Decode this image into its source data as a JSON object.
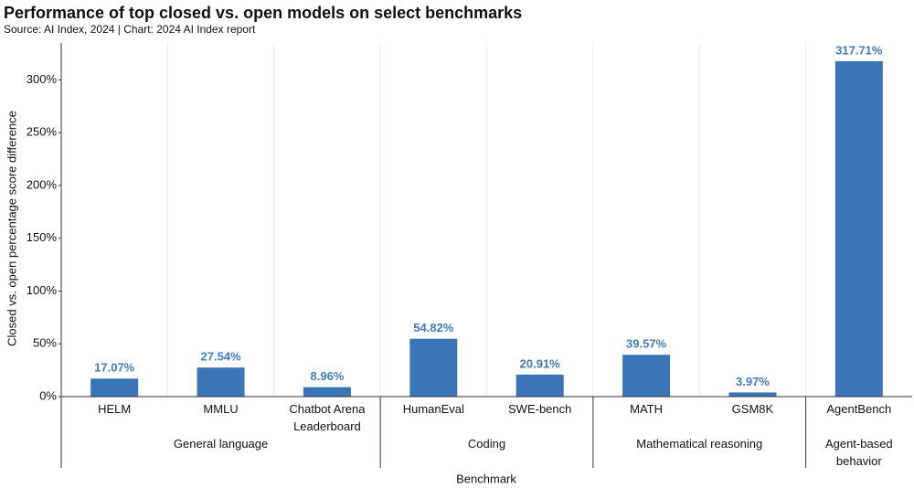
{
  "chart_data": {
    "type": "bar",
    "title": "Performance of top closed vs. open models on select benchmarks",
    "subtitle": "Source: AI Index, 2024 | Chart: 2024 AI Index report",
    "y_label": "Closed vs. open percentage score difference",
    "x_label": "Benchmark",
    "categories": [
      "HELM",
      "MMLU",
      "Chatbot Arena Leaderboard",
      "HumanEval",
      "SWE-bench",
      "MATH",
      "GSM8K",
      "AgentBench"
    ],
    "values": [
      17.07,
      27.54,
      8.96,
      54.82,
      20.91,
      39.57,
      3.97,
      317.71
    ],
    "value_labels": [
      "17.07%",
      "27.54%",
      "8.96%",
      "54.82%",
      "20.91%",
      "39.57%",
      "3.97%",
      "317.71%"
    ],
    "groups": [
      {
        "label": "General language",
        "span": 3
      },
      {
        "label": "Coding",
        "span": 2
      },
      {
        "label": "Mathematical reasoning",
        "span": 2
      },
      {
        "label": "Agent-based behavior",
        "span": 1
      }
    ],
    "color": "#3a75b8",
    "label_color": "#3f7cc2",
    "ylim": [
      0,
      335
    ],
    "yticks": [
      {
        "value": 0,
        "label": "0%"
      },
      {
        "value": 50,
        "label": "50%"
      },
      {
        "value": 100,
        "label": "100%"
      },
      {
        "value": 150,
        "label": "150%"
      },
      {
        "value": 200,
        "label": "200%"
      },
      {
        "value": 250,
        "label": "250%"
      },
      {
        "value": 300,
        "label": "300%"
      }
    ],
    "grid": true
  }
}
